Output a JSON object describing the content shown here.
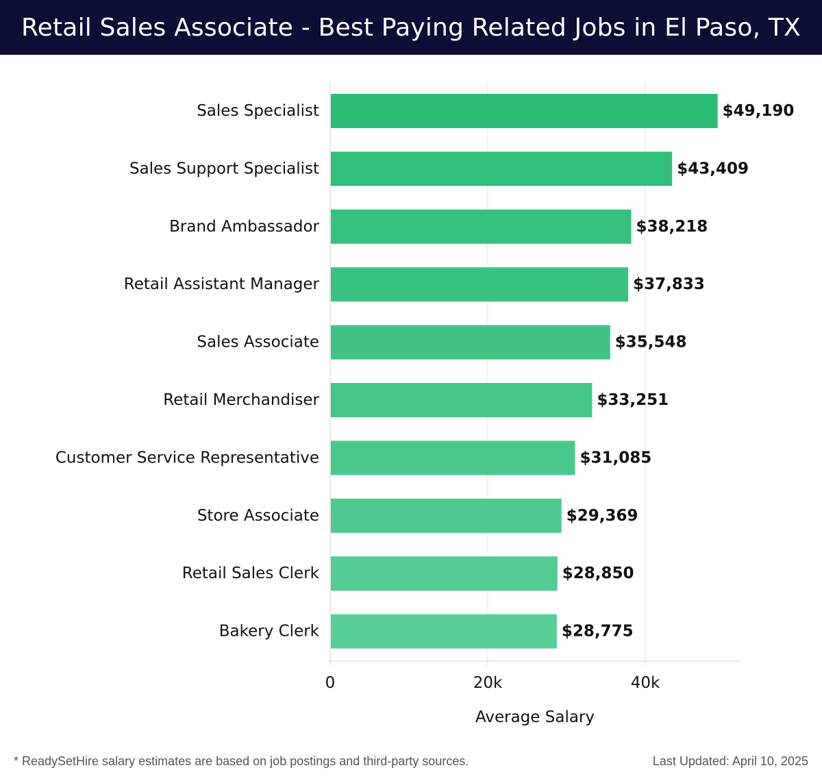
{
  "header": {
    "title": "Retail Sales Associate - Best Paying Related Jobs in El Paso, TX"
  },
  "chart_data": {
    "type": "bar",
    "orientation": "horizontal",
    "title": "Retail Sales Associate - Best Paying Related Jobs in El Paso, TX",
    "xlabel": "Average Salary",
    "ylabel": "",
    "categories": [
      "Sales Specialist",
      "Sales Support Specialist",
      "Brand Ambassador",
      "Retail Assistant Manager",
      "Sales Associate",
      "Retail Merchandiser",
      "Customer Service Representative",
      "Store Associate",
      "Retail Sales Clerk",
      "Bakery Clerk"
    ],
    "values": [
      49190,
      43409,
      38218,
      37833,
      35548,
      33251,
      31085,
      29369,
      28850,
      28775
    ],
    "value_labels": [
      "$49,190",
      "$43,409",
      "$38,218",
      "$37,833",
      "$35,548",
      "$33,251",
      "$31,085",
      "$29,369",
      "$28,850",
      "$28,775"
    ],
    "xticks": [
      0,
      20000,
      40000
    ],
    "xtick_labels": [
      "0",
      "20k",
      "40k"
    ],
    "xlim": [
      0,
      52000
    ],
    "grid": true,
    "legend": "none",
    "colors": {
      "bar_top": "#2bbd76",
      "bar_bottom": "#58cd96",
      "grid": "#e6e6e6",
      "axis": "#d0d0d0"
    }
  },
  "footer": {
    "note": "* ReadySetHire salary estimates are based on job postings and third-party sources.",
    "updated": "Last Updated: April 10, 2025"
  }
}
